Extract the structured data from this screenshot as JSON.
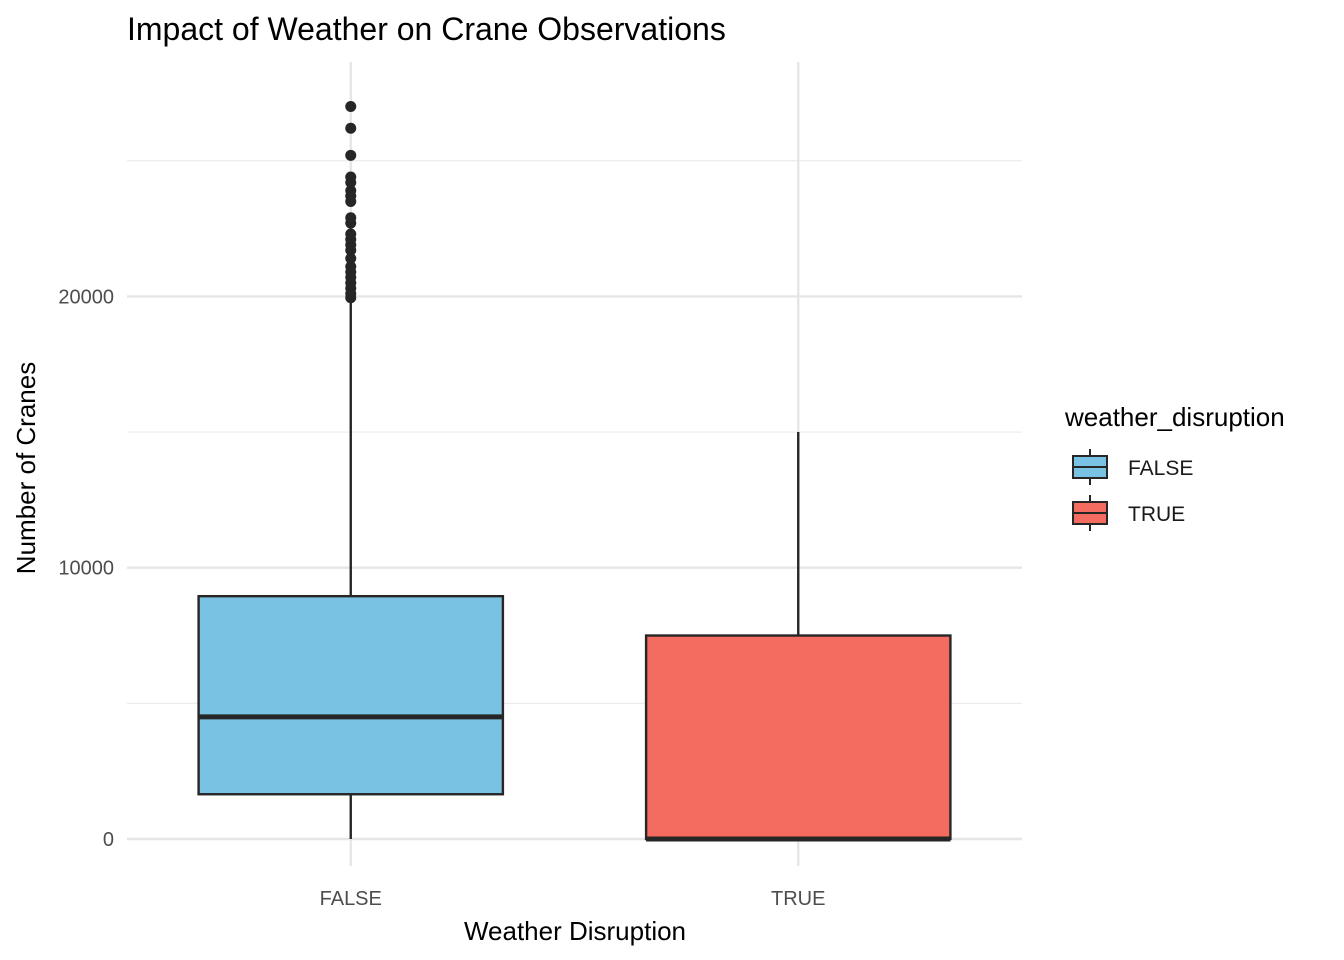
{
  "chart_data": {
    "type": "boxplot",
    "title": "Impact of Weather on Crane Observations",
    "xlabel": "Weather Disruption",
    "ylabel": "Number of Cranes",
    "categories": [
      "FALSE",
      "TRUE"
    ],
    "ylim": [
      -1000,
      28500
    ],
    "yticks": [
      0,
      10000,
      20000
    ],
    "ytick_labels": [
      "0",
      "10000",
      "20000"
    ],
    "grid": true,
    "legend": {
      "title": "weather_disruption",
      "position": "right",
      "entries": [
        {
          "label": "FALSE",
          "color": "#79C2E4"
        },
        {
          "label": "TRUE",
          "color": "#F46B5F"
        }
      ]
    },
    "boxes": [
      {
        "category": "FALSE",
        "color": "#79C2E4",
        "min": 0,
        "q1": 1650,
        "median": 4500,
        "q3": 8950,
        "max": 19850,
        "outliers": [
          27000,
          26200,
          25200,
          24400,
          24200,
          23900,
          23700,
          23500,
          22900,
          22700,
          22300,
          22100,
          21900,
          21700,
          21400,
          21100,
          20900,
          20700,
          20500,
          20300,
          20100,
          19950
        ]
      },
      {
        "category": "TRUE",
        "color": "#F46B5F",
        "min": 0,
        "q1": 0,
        "median": 0,
        "q3": 7500,
        "max": 15000,
        "outliers": []
      }
    ]
  }
}
